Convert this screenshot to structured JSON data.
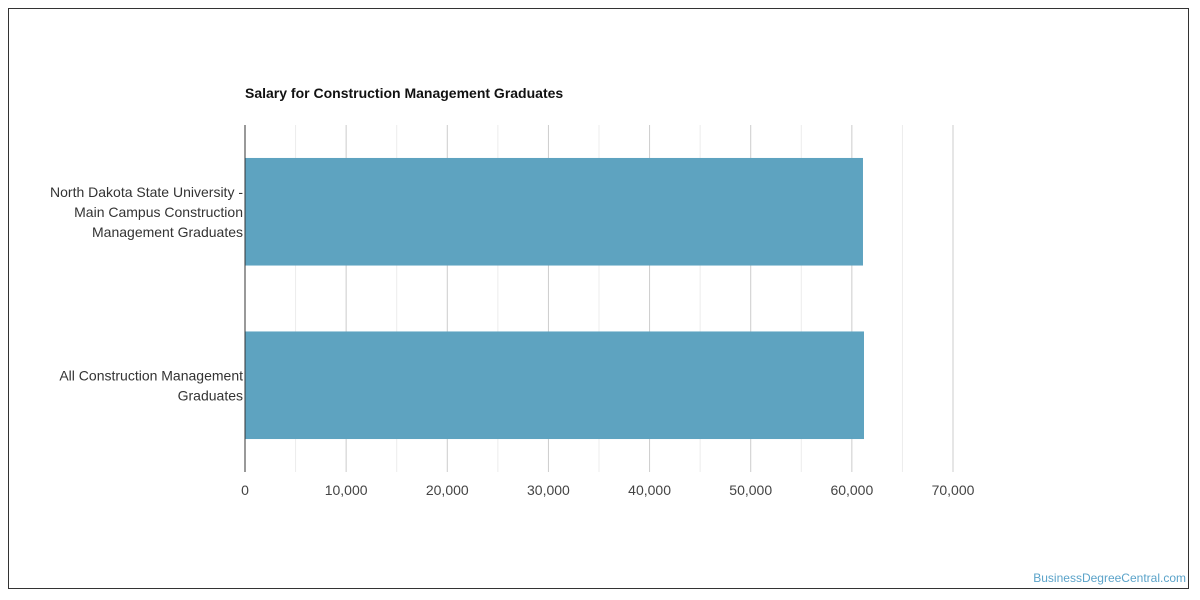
{
  "chart_data": {
    "type": "bar",
    "orientation": "horizontal",
    "title": "Salary for Construction Management Graduates",
    "categories": [
      [
        "North Dakota State University -",
        "Main Campus Construction",
        "Management Graduates"
      ],
      [
        "All Construction Management",
        "Graduates"
      ]
    ],
    "values": [
      61100,
      61200
    ],
    "xlim": [
      0,
      70000
    ],
    "xticks": [
      0,
      10000,
      20000,
      30000,
      40000,
      50000,
      60000,
      70000
    ],
    "xtick_labels": [
      "0",
      "10,000",
      "20,000",
      "30,000",
      "40,000",
      "50,000",
      "60,000",
      "70,000"
    ],
    "xlabel": "",
    "ylabel": "",
    "grid": true,
    "bar_color": "#5ea3c0",
    "legend": "none"
  },
  "watermark": "BusinessDegreeCentral.com"
}
